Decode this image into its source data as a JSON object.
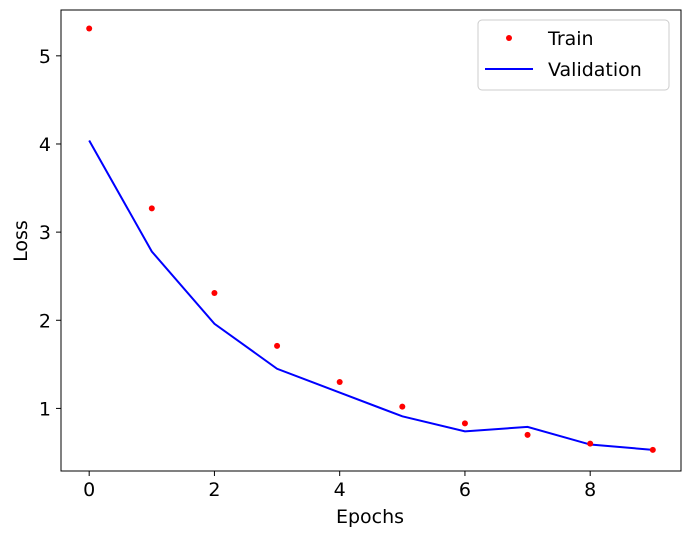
{
  "chart_data": {
    "type": "line",
    "title": "",
    "xlabel": "Epochs",
    "ylabel": "Loss",
    "xlim": [
      -0.45,
      9.45
    ],
    "ylim": [
      0.29,
      5.52
    ],
    "xticks": [
      0,
      2,
      4,
      6,
      8
    ],
    "yticks": [
      1,
      2,
      3,
      4,
      5
    ],
    "x": [
      0,
      1,
      2,
      3,
      4,
      5,
      6,
      7,
      8,
      9
    ],
    "series": [
      {
        "name": "Train",
        "style": "markers",
        "color": "#ff0000",
        "values": [
          5.31,
          3.27,
          2.31,
          1.71,
          1.3,
          1.02,
          0.83,
          0.7,
          0.6,
          0.53
        ]
      },
      {
        "name": "Validation",
        "style": "line",
        "color": "#0000ff",
        "values": [
          4.04,
          2.78,
          1.96,
          1.45,
          1.18,
          0.91,
          0.74,
          0.79,
          0.59,
          0.53
        ]
      }
    ],
    "legend": "top-right",
    "grid": false
  }
}
